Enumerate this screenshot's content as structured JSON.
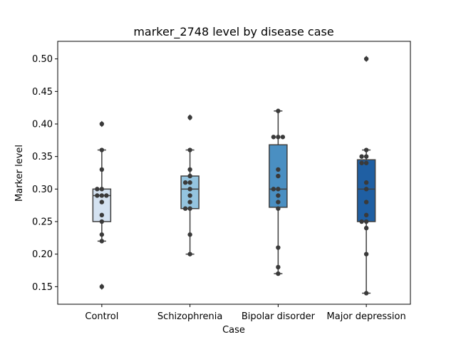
{
  "chart_data": {
    "type": "box",
    "title": "marker_2748 level by disease case",
    "xlabel": "Case",
    "ylabel": "Marker level",
    "ylim": [
      0.123,
      0.527
    ],
    "yticks": [
      0.15,
      0.2,
      0.25,
      0.3,
      0.35,
      0.4,
      0.45,
      0.5
    ],
    "ytick_labels": [
      "0.15",
      "0.20",
      "0.25",
      "0.30",
      "0.35",
      "0.40",
      "0.45",
      "0.50"
    ],
    "categories": [
      "Control",
      "Schizophrenia",
      "Bipolar disorder",
      "Major depression"
    ],
    "colors": [
      "#d4e2f1",
      "#94c4df",
      "#4a8fc2",
      "#1f5fa3"
    ],
    "grid": false,
    "boxes": [
      {
        "q1": 0.25,
        "median": 0.29,
        "q3": 0.3,
        "whisker_low": 0.22,
        "whisker_high": 0.36,
        "outliers": [
          0.4,
          0.15
        ]
      },
      {
        "q1": 0.27,
        "median": 0.3,
        "q3": 0.32,
        "whisker_low": 0.2,
        "whisker_high": 0.36,
        "outliers": [
          0.41
        ]
      },
      {
        "q1": 0.272,
        "median": 0.3,
        "q3": 0.368,
        "whisker_low": 0.17,
        "whisker_high": 0.42,
        "outliers": []
      },
      {
        "q1": 0.25,
        "median": 0.3,
        "q3": 0.345,
        "whisker_low": 0.14,
        "whisker_high": 0.36,
        "outliers": [
          0.5
        ]
      }
    ],
    "points": [
      [
        0.4,
        0.36,
        0.33,
        0.3,
        0.3,
        0.29,
        0.29,
        0.29,
        0.28,
        0.26,
        0.25,
        0.23,
        0.22,
        0.15
      ],
      [
        0.41,
        0.36,
        0.33,
        0.32,
        0.31,
        0.31,
        0.3,
        0.29,
        0.28,
        0.27,
        0.27,
        0.23,
        0.2
      ],
      [
        0.42,
        0.38,
        0.38,
        0.38,
        0.33,
        0.32,
        0.3,
        0.3,
        0.29,
        0.28,
        0.27,
        0.21,
        0.18,
        0.17
      ],
      [
        0.5,
        0.36,
        0.35,
        0.35,
        0.34,
        0.34,
        0.31,
        0.3,
        0.28,
        0.26,
        0.25,
        0.25,
        0.24,
        0.2,
        0.14
      ]
    ]
  }
}
